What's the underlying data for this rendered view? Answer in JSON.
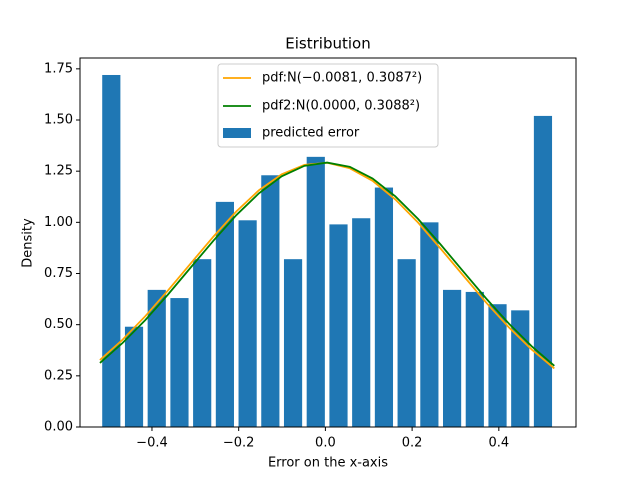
{
  "chart_data": {
    "type": "histogram",
    "title": "Eistribution",
    "xlabel": "Error on the x-axis",
    "ylabel": "Density",
    "name": "predicted error",
    "color": "#1f77b4",
    "rwidth": 0.8,
    "bins": [
      -0.52,
      -0.4676,
      -0.4152,
      -0.3628,
      -0.3104,
      -0.258,
      -0.2056,
      -0.1532,
      -0.1008,
      -0.0484,
      0.004,
      0.0564,
      0.1088,
      0.1612,
      0.2136,
      0.266,
      0.3184,
      0.3708,
      0.4232,
      0.4756,
      0.528
    ],
    "values": [
      1.72,
      0.49,
      0.67,
      0.63,
      0.82,
      1.1,
      1.01,
      1.23,
      0.82,
      1.32,
      0.99,
      1.02,
      1.17,
      0.82,
      1.0,
      0.67,
      0.66,
      0.6,
      0.57,
      1.52
    ],
    "x": [
      -0.52,
      -0.4676,
      -0.4152,
      -0.3628,
      -0.3104,
      -0.258,
      -0.2056,
      -0.1532,
      -0.1008,
      -0.0484,
      0.004,
      0.0564,
      0.1088,
      0.1612,
      0.2136,
      0.266,
      0.3184,
      0.3708,
      0.4232,
      0.4756,
      0.528
    ],
    "series": [
      {
        "name": "pdf:N(−0.0081, 0.3087²)",
        "color": "#ffa500",
        "values": [
          0.327,
          0.427,
          0.542,
          0.668,
          0.8,
          0.931,
          1.053,
          1.157,
          1.235,
          1.281,
          1.291,
          1.264,
          1.203,
          1.112,
          0.999,
          0.871,
          0.739,
          0.608,
          0.487,
          0.379,
          0.286
        ]
      },
      {
        "name": "pdf2:N(0.0000, 0.3088²)",
        "color": "#008000",
        "values": [
          0.313,
          0.411,
          0.523,
          0.648,
          0.78,
          0.911,
          1.035,
          1.142,
          1.225,
          1.276,
          1.292,
          1.271,
          1.214,
          1.127,
          1.017,
          0.891,
          0.759,
          0.628,
          0.505,
          0.395,
          0.299
        ]
      }
    ],
    "xlim": [
      -0.566,
      0.578
    ],
    "xticks": [
      {
        "value": -0.4,
        "label": "−0.4"
      },
      {
        "value": -0.2,
        "label": "−0.2"
      },
      {
        "value": 0,
        "label": "0.0"
      },
      {
        "value": 0.2,
        "label": "0.2"
      },
      {
        "value": 0.4,
        "label": "0.4"
      }
    ],
    "ylim": [
      0,
      1.803
    ],
    "yticks": [
      {
        "value": 0,
        "label": "0.00"
      },
      {
        "value": 0.25,
        "label": "0.25"
      },
      {
        "value": 0.5,
        "label": "0.50"
      },
      {
        "value": 0.75,
        "label": "0.75"
      },
      {
        "value": 1,
        "label": "1.00"
      },
      {
        "value": 1.25,
        "label": "1.25"
      },
      {
        "value": 1.5,
        "label": "1.50"
      },
      {
        "value": 1.75,
        "label": "1.75"
      }
    ],
    "legend": "upper center",
    "grid": false
  }
}
